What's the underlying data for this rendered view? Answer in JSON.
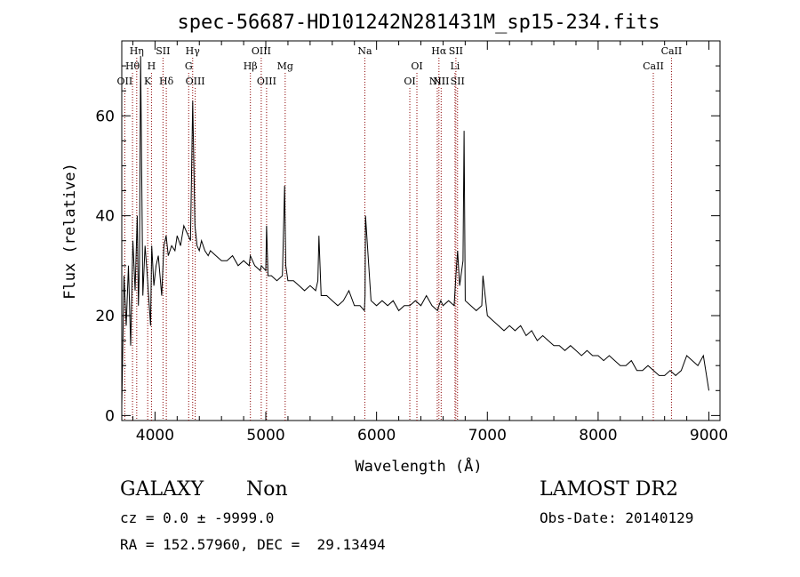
{
  "chart_data": {
    "type": "line",
    "title": "spec-56687-HD101242N281431M_sp15-234.fits",
    "xlabel": "Wavelength (Å)",
    "ylabel": "Flux (relative)",
    "xlim": [
      3700,
      9100
    ],
    "ylim": [
      -1,
      75
    ],
    "xticks": [
      4000,
      5000,
      6000,
      7000,
      8000,
      9000
    ],
    "yticks": [
      0,
      20,
      40,
      60
    ],
    "grid": false,
    "line_color": "#000000",
    "marker_color": "#8b0000",
    "series": [
      {
        "x": [
          3700,
          3720,
          3740,
          3760,
          3780,
          3800,
          3820,
          3840,
          3850,
          3860,
          3870,
          3890,
          3910,
          3930,
          3960,
          3970,
          3990,
          4010,
          4030,
          4060,
          4080,
          4100,
          4120,
          4150,
          4180,
          4200,
          4230,
          4260,
          4280,
          4300,
          4320,
          4340,
          4360,
          4380,
          4400,
          4420,
          4450,
          4480,
          4500,
          4550,
          4600,
          4650,
          4700,
          4750,
          4800,
          4850,
          4860,
          4900,
          4950,
          4960,
          5000,
          5007,
          5020,
          5050,
          5100,
          5150,
          5170,
          5180,
          5200,
          5250,
          5300,
          5350,
          5400,
          5450,
          5470,
          5480,
          5500,
          5550,
          5600,
          5650,
          5700,
          5750,
          5800,
          5850,
          5890,
          5896,
          5900,
          5950,
          6000,
          6050,
          6100,
          6150,
          6200,
          6250,
          6300,
          6350,
          6400,
          6450,
          6500,
          6550,
          6563,
          6580,
          6600,
          6650,
          6700,
          6716,
          6731,
          6750,
          6780,
          6790,
          6800,
          6850,
          6900,
          6950,
          6960,
          7000,
          7050,
          7100,
          7150,
          7200,
          7250,
          7300,
          7350,
          7400,
          7450,
          7500,
          7550,
          7600,
          7650,
          7700,
          7750,
          7800,
          7850,
          7900,
          7950,
          8000,
          8050,
          8100,
          8150,
          8200,
          8250,
          8300,
          8350,
          8400,
          8450,
          8500,
          8550,
          8600,
          8650,
          8700,
          8750,
          8800,
          8850,
          8900,
          8950,
          9000
        ],
        "y": [
          2,
          28,
          18,
          30,
          14,
          35,
          25,
          40,
          22,
          30,
          72,
          24,
          34,
          28,
          18,
          34,
          26,
          30,
          32,
          24,
          34,
          36,
          32,
          34,
          33,
          36,
          34,
          38,
          37,
          36,
          35,
          63,
          38,
          34,
          33,
          35,
          33,
          32,
          33,
          32,
          31,
          31,
          32,
          30,
          31,
          30,
          32,
          30,
          29,
          30,
          29,
          38,
          28,
          28,
          27,
          28,
          46,
          30,
          27,
          27,
          26,
          25,
          26,
          25,
          27,
          36,
          24,
          24,
          23,
          22,
          23,
          25,
          22,
          22,
          21,
          24,
          40,
          23,
          22,
          23,
          22,
          23,
          21,
          22,
          22,
          23,
          22,
          24,
          22,
          21,
          22,
          23,
          22,
          23,
          22,
          28,
          33,
          26,
          31,
          57,
          23,
          22,
          21,
          22,
          28,
          20,
          19,
          18,
          17,
          18,
          17,
          18,
          16,
          17,
          15,
          16,
          15,
          14,
          14,
          13,
          14,
          13,
          12,
          13,
          12,
          12,
          11,
          12,
          11,
          10,
          10,
          11,
          9,
          9,
          10,
          9,
          8,
          8,
          9,
          8,
          9,
          12,
          11,
          10,
          12,
          5
        ]
      }
    ],
    "annotations": [
      {
        "label": "OII",
        "x": 3727,
        "row": 3
      },
      {
        "label": "Hθ",
        "x": 3797,
        "row": 2
      },
      {
        "label": "Hη",
        "x": 3835,
        "row": 1
      },
      {
        "label": "K",
        "x": 3934,
        "row": 3
      },
      {
        "label": "H",
        "x": 3968,
        "row": 2
      },
      {
        "label": "SII",
        "x": 4072,
        "row": 1
      },
      {
        "label": "Hδ",
        "x": 4102,
        "row": 3
      },
      {
        "label": "G",
        "x": 4304,
        "row": 2
      },
      {
        "label": "Hγ",
        "x": 4340,
        "row": 1
      },
      {
        "label": "OIII",
        "x": 4363,
        "row": 3
      },
      {
        "label": "Hβ",
        "x": 4861,
        "row": 2
      },
      {
        "label": "OIII",
        "x": 4959,
        "row": 1
      },
      {
        "label": "OIII",
        "x": 5007,
        "row": 3
      },
      {
        "label": "Mg",
        "x": 5175,
        "row": 2
      },
      {
        "label": "Na",
        "x": 5894,
        "row": 1
      },
      {
        "label": "OI",
        "x": 6300,
        "row": 3
      },
      {
        "label": "OI",
        "x": 6364,
        "row": 2
      },
      {
        "label": "NII",
        "x": 6548,
        "row": 3
      },
      {
        "label": "Hα",
        "x": 6563,
        "row": 1
      },
      {
        "label": "NII",
        "x": 6583,
        "row": 3
      },
      {
        "label": "Li",
        "x": 6708,
        "row": 2
      },
      {
        "label": "SII",
        "x": 6716,
        "row": 1
      },
      {
        "label": "SII",
        "x": 6731,
        "row": 3
      },
      {
        "label": "CaII",
        "x": 8498,
        "row": 2
      },
      {
        "label": "CaII",
        "x": 8662,
        "row": 1
      }
    ]
  },
  "footer": {
    "class_label": "GALAXY",
    "subclass_label": "Non",
    "survey_label": "LAMOST DR2",
    "cz_line": "cz = 0.0 ± -9999.0",
    "obs_date_line": "Obs-Date: 20140129",
    "radec_line": "RA = 152.57960, DEC =  29.13494"
  }
}
